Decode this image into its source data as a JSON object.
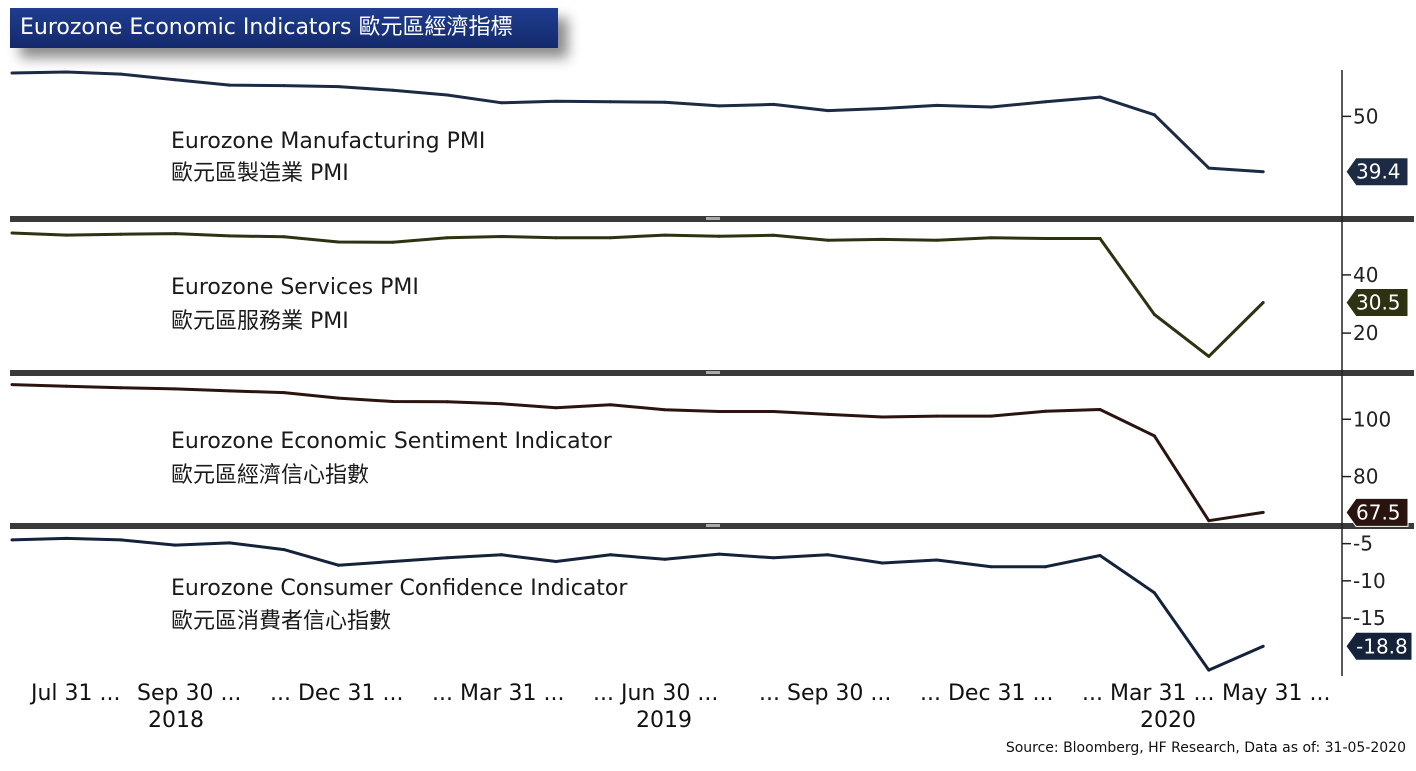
{
  "header": {
    "title": "Eurozone Economic Indicators 歐元區經濟指標"
  },
  "source_note": "Source: Bloomberg, HF Research, Data as of: 31-05-2020",
  "chart_data": [
    {
      "type": "line",
      "label_en": "Eurozone Manufacturing PMI",
      "label_zh": "歐元區製造業 PMI",
      "color": "#1c2a44",
      "yticks": [
        50
      ],
      "ylim": [
        31.3,
        58.5
      ],
      "last_value": "39.4",
      "values": [
        58.3,
        58.5,
        58.1,
        57.0,
        56.0,
        55.9,
        55.7,
        55.0,
        54.1,
        52.6,
        52.9,
        52.8,
        52.7,
        52.0,
        52.3,
        51.1,
        51.5,
        52.1,
        51.8,
        52.8,
        53.7,
        50.3,
        40.1,
        39.4
      ]
    },
    {
      "type": "line",
      "label_en": "Eurozone Services PMI",
      "label_zh": "歐元區服務業 PMI",
      "color": "#2e3212",
      "yticks": [
        40,
        20
      ],
      "ylim": [
        8,
        57.5
      ],
      "last_value": "30.5",
      "values": [
        54.4,
        53.7,
        54.0,
        54.2,
        53.4,
        53.1,
        51.3,
        51.2,
        52.8,
        53.2,
        52.8,
        52.8,
        53.7,
        53.3,
        53.6,
        51.9,
        52.2,
        51.9,
        52.8,
        52.5,
        52.5,
        26.4,
        12.0,
        30.5
      ]
    },
    {
      "type": "line",
      "label_en": "Eurozone Economic Sentiment Indicator",
      "label_zh": "歐元區經濟信心指數",
      "color": "#2a1410",
      "yticks": [
        100,
        80
      ],
      "ylim": [
        64.5,
        114.4
      ],
      "last_value": "67.5",
      "values": [
        112.1,
        111.5,
        111.0,
        110.6,
        109.9,
        109.3,
        107.4,
        106.2,
        106.1,
        105.4,
        104.0,
        105.1,
        103.3,
        102.7,
        102.7,
        101.7,
        100.8,
        101.1,
        101.1,
        102.8,
        103.4,
        94.2,
        64.6,
        67.5
      ]
    },
    {
      "type": "line",
      "label_en": "Eurozone Consumer Confidence Indicator",
      "label_zh": "歐元區消費者信心指數",
      "color": "#14223a",
      "yticks": [
        -5,
        -10,
        -15
      ],
      "ylim": [
        -22.8,
        -3.3
      ],
      "last_value": "-18.8",
      "values": [
        -4.5,
        -4.3,
        -4.5,
        -5.2,
        -4.9,
        -5.8,
        -7.9,
        -7.4,
        -6.9,
        -6.5,
        -7.4,
        -6.5,
        -7.1,
        -6.4,
        -6.9,
        -6.5,
        -7.6,
        -7.2,
        -8.1,
        -8.1,
        -6.6,
        -11.6,
        -22.0,
        -18.8
      ]
    }
  ],
  "x_axis": {
    "tick_labels": [
      "Jul 31 ...",
      "Sep 30 ...",
      "... Dec 31 ...",
      "... Mar 31 ...",
      "... Jun 30 ...",
      "... Sep 30 ...",
      "... Dec 31 ...",
      "... Mar 31 ...",
      "May 31 ..."
    ],
    "years": [
      "2018",
      "2019",
      "2020"
    ]
  }
}
